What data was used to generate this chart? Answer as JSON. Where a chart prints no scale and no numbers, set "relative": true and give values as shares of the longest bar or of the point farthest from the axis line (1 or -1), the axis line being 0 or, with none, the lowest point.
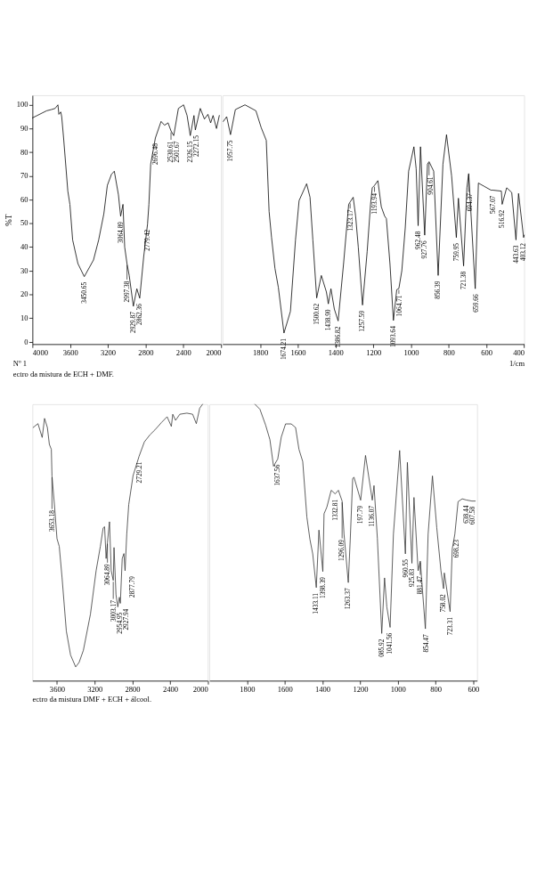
{
  "chart_data": [
    {
      "type": "line",
      "ylabel": "%T",
      "x": [
        4000,
        3950,
        3900,
        3850,
        3800,
        3760,
        3730,
        3720,
        3700,
        3690,
        3670,
        3625,
        3603,
        3574,
        3518,
        3450.65,
        3353,
        3298,
        3243,
        3206,
        3162,
        3132,
        3088,
        3064.89,
        3040,
        3022,
        2997.38,
        2974,
        2929.87,
        2893,
        2862.36,
        2820,
        2779.42,
        2765,
        2746,
        2696.48,
        2636,
        2599,
        2562,
        2530.61,
        2501.67,
        2452,
        2397,
        2360,
        2326.15,
        2287,
        2272.15,
        2220,
        2176,
        2139,
        2110,
        2084,
        2048,
        2018
      ],
      "series": [
        {
          "color": "#000000",
          "values": [
            94.5,
            95.5,
            96.5,
            97.5,
            98,
            98.5,
            100,
            96,
            97,
            95,
            86,
            63.6,
            58,
            43,
            33,
            27.5,
            34.5,
            43,
            54,
            66,
            70.7,
            72,
            62,
            53,
            58,
            40,
            33,
            28,
            15,
            22.4,
            18.4,
            36,
            49.7,
            58,
            75,
            86,
            93,
            91.4,
            92.4,
            89,
            87,
            98.5,
            100,
            95.5,
            87,
            95.5,
            89.4,
            98.5,
            94,
            96,
            92.4,
            95.5,
            90,
            95.5
          ]
        }
      ],
      "xlim": [
        4000,
        2000
      ],
      "xticks": [
        4000,
        3600,
        3200,
        2800,
        2400,
        2000
      ],
      "ylim": [
        -1,
        104
      ],
      "yticks": [
        0,
        10,
        20,
        30,
        40,
        50,
        60,
        70,
        80,
        90,
        100
      ],
      "annotations": [
        {
          "text": "3450.65",
          "x": 3450.65,
          "y": 27.5
        },
        {
          "text": "3064.89",
          "x": 3064.89,
          "y": 53
        },
        {
          "text": "2997.38",
          "x": 2997.38,
          "y": 33
        },
        {
          "text": "2929.87",
          "x": 2929.87,
          "y": 15
        },
        {
          "text": "2862.36",
          "x": 2862.36,
          "y": 18.4
        },
        {
          "text": "2779.42",
          "x": 2779.42,
          "y": 49.7
        },
        {
          "text": "2696.48",
          "x": 2696.48,
          "y": 86
        },
        {
          "text": "2530.61",
          "x": 2530.61,
          "y": 89
        },
        {
          "text": "2501.67",
          "x": 2501.67,
          "y": 87
        },
        {
          "text": "2326.15",
          "x": 2326.15,
          "y": 87
        },
        {
          "text": "2272.15",
          "x": 2272.15,
          "y": 89.4
        },
        "Nº 1",
        "ectro da mistura de ECH + DMF."
      ]
    },
    {
      "type": "line",
      "xlabel": "1/cm",
      "tick_labels": "x",
      "x": [
        1996,
        1978,
        1957.75,
        1932,
        1881,
        1823,
        1795,
        1768,
        1753,
        1740,
        1722,
        1704,
        1674.21,
        1640,
        1613,
        1594,
        1554,
        1536,
        1521,
        1500.62,
        1476,
        1449,
        1438.9,
        1425,
        1407,
        1386.82,
        1358,
        1331,
        1323.17,
        1307,
        1294,
        1280,
        1257.59,
        1233,
        1215,
        1206,
        1193.94,
        1176,
        1158,
        1140,
        1131,
        1112,
        1093.64,
        1076,
        1064.71,
        1049,
        1031,
        1013,
        985,
        973,
        962.48,
        950,
        927.76,
        913,
        904.61,
        880,
        856.39,
        831,
        812,
        785,
        759.95,
        749,
        721.38,
        704,
        694.37,
        659.66,
        643,
        612,
        576,
        567.07,
        521,
        516.92,
        493,
        466,
        443.63,
        430,
        403.12,
        400
      ],
      "series": [
        {
          "color": "#000000",
          "values": [
            93,
            95,
            87.4,
            98,
            100,
            97.5,
            90.4,
            85,
            55,
            44,
            31,
            23,
            3.7,
            12.8,
            43,
            59.6,
            66.7,
            61,
            43,
            18.5,
            28,
            21,
            16,
            22.4,
            13.8,
            8.8,
            33,
            58,
            59,
            61,
            53,
            40,
            15.5,
            38,
            58,
            65,
            66,
            68,
            57,
            53,
            52,
            33,
            9,
            22,
            22.5,
            30,
            48,
            72,
            82.3,
            73,
            49,
            82.3,
            45,
            75,
            76,
            72,
            28,
            75,
            87.4,
            70,
            44,
            60.6,
            32,
            65,
            71,
            22.4,
            67,
            65.6,
            64,
            64,
            63.6,
            58,
            65,
            63,
            43,
            62.6,
            44,
            45
          ]
        }
      ],
      "xlim": [
        2000,
        400
      ],
      "xticks": [
        1800,
        1600,
        1400,
        1200,
        1000,
        800,
        600,
        400
      ],
      "ylim": [
        -1,
        104
      ],
      "annotations": [
        {
          "text": "1957.75",
          "x": 1957.75,
          "y": 87.4
        },
        {
          "text": "1674.21",
          "x": 1674.21,
          "y": 3.7
        },
        {
          "text": "1500.62",
          "x": 1500.62,
          "y": 18.5
        },
        {
          "text": "1438.90",
          "x": 1438.9,
          "y": 16
        },
        {
          "text": "1386.82",
          "x": 1386.82,
          "y": 8.8
        },
        {
          "text": "1323.17",
          "x": 1323.17,
          "y": 59
        },
        {
          "text": "1257.59",
          "x": 1257.59,
          "y": 15.5
        },
        {
          "text": "1193.94",
          "x": 1193.94,
          "y": 66
        },
        {
          "text": "1093.64",
          "x": 1093.64,
          "y": 9
        },
        {
          "text": "1064.71",
          "x": 1064.71,
          "y": 22.5
        },
        {
          "text": "962.48",
          "x": 962.48,
          "y": 49
        },
        {
          "text": "927.76",
          "x": 927.76,
          "y": 45
        },
        {
          "text": "904.61",
          "x": 904.61,
          "y": 76
        },
        {
          "text": "856.39",
          "x": 856.39,
          "y": 28
        },
        {
          "text": "759.95",
          "x": 759.95,
          "y": 44
        },
        {
          "text": "721.38",
          "x": 721.38,
          "y": 32
        },
        {
          "text": "694.37",
          "x": 694.37,
          "y": 71
        },
        {
          "text": "659.66",
          "x": 659.66,
          "y": 22.4
        },
        {
          "text": "567.07",
          "x": 567.07,
          "y": 64
        },
        {
          "text": "516.92",
          "x": 516.92,
          "y": 58
        },
        {
          "text": "443.63",
          "x": 443.63,
          "y": 43
        },
        {
          "text": "403.12",
          "x": 403.12,
          "y": 44
        }
      ]
    },
    {
      "type": "line",
      "relative": true,
      "x": [
        3853,
        3802,
        3757,
        3732,
        3702,
        3681,
        3660,
        3653.18,
        3627,
        3600,
        3576,
        3546,
        3501,
        3456,
        3402,
        3366,
        3320,
        3245,
        3185,
        3140,
        3110,
        3095,
        3079,
        3064.89,
        3043,
        3025,
        3003.17,
        2995,
        2974,
        2954.95,
        2938,
        2927.94,
        2908,
        2890,
        2877.79,
        2860,
        2839,
        2793,
        2729.21,
        2673,
        2613,
        2562,
        2492,
        2432,
        2387,
        2372,
        2342,
        2297,
        2222,
        2161,
        2122,
        2086,
        2056
      ],
      "series": [
        {
          "color": "#333333",
          "values": [
            0.916,
            0.93,
            0.88,
            0.949,
            0.916,
            0.855,
            0.837,
            0.741,
            0.636,
            0.514,
            0.486,
            0.372,
            0.18,
            0.093,
            0.05,
            0.066,
            0.11,
            0.241,
            0.398,
            0.486,
            0.553,
            0.557,
            0.442,
            0.5,
            0.575,
            0.398,
            0.363,
            0.482,
            0.311,
            0.267,
            0.302,
            0.28,
            0.442,
            0.46,
            0.398,
            0.53,
            0.637,
            0.742,
            0.812,
            0.864,
            0.89,
            0.907,
            0.934,
            0.955,
            0.92,
            0.964,
            0.942,
            0.964,
            0.968,
            0.964,
            0.93,
            0.986,
            1.0
          ]
        }
      ],
      "xlim": [
        3860,
        2000
      ],
      "xticks": [
        3600,
        3200,
        2800,
        2400,
        2000
      ],
      "annotations": [
        {
          "text": "3653.18",
          "x": 3653.18,
          "y": 0.741
        },
        {
          "text": "3064.89",
          "x": 3064.89,
          "y": 0.5
        },
        {
          "text": "3003.17",
          "x": 3003.17,
          "y": 0.363
        },
        {
          "text": "2954.95",
          "x": 2954.95,
          "y": 0.267
        },
        {
          "text": "2927.94",
          "x": 2927.94,
          "y": 0.28
        },
        {
          "text": "2877.79",
          "x": 2877.79,
          "y": 0.398
        },
        {
          "text": "2729.21",
          "x": 2729.21,
          "y": 0.812
        },
        "ectro da mistura DMF + ECH + álcool."
      ]
    },
    {
      "type": "line",
      "relative": true,
      "tick_labels": "x",
      "x": [
        1758,
        1732,
        1702,
        1679,
        1660,
        1637.56,
        1619,
        1596,
        1566,
        1543,
        1525,
        1505,
        1483,
        1467,
        1452,
        1433.11,
        1419,
        1398.39,
        1392,
        1377,
        1354,
        1332.81,
        1316,
        1296.09,
        1286,
        1263.37,
        1253,
        1240,
        1233,
        1197.79,
        1172,
        1136.07,
        1127,
        1109,
        1085.92,
        1071,
        1059,
        1041.56,
        1024,
        991,
        960.55,
        950,
        925.83,
        915,
        893,
        881.47,
        854.47,
        840,
        817,
        794,
        772,
        758.02,
        754,
        723.31,
        712,
        698.23,
        681,
        659,
        638.44,
        607.58,
        590
      ],
      "series": [
        {
          "color": "#333333",
          "values": [
            1.0,
            0.982,
            0.925,
            0.872,
            0.776,
            0.802,
            0.881,
            0.929,
            0.929,
            0.916,
            0.837,
            0.793,
            0.592,
            0.512,
            0.459,
            0.337,
            0.545,
            0.395,
            0.604,
            0.628,
            0.689,
            0.676,
            0.689,
            0.65,
            0.53,
            0.355,
            0.51,
            0.732,
            0.736,
            0.653,
            0.815,
            0.653,
            0.706,
            0.514,
            0.171,
            0.372,
            0.267,
            0.193,
            0.53,
            0.833,
            0.459,
            0.79,
            0.425,
            0.663,
            0.398,
            0.433,
            0.188,
            0.53,
            0.741,
            0.553,
            0.398,
            0.333,
            0.39,
            0.25,
            0.477,
            0.53,
            0.648,
            0.658,
            0.654,
            0.65,
            0.65
          ]
        }
      ],
      "xlim": [
        2000,
        580
      ],
      "xticks": [
        1800,
        1600,
        1400,
        1200,
        1000,
        800,
        600
      ],
      "annotations": [
        {
          "text": "1637.56",
          "x": 1637.56,
          "y": 0.802
        },
        {
          "text": "1433.11",
          "x": 1433.11,
          "y": 0.337
        },
        {
          "text": "1398.39",
          "x": 1398.39,
          "y": 0.395
        },
        {
          "text": "1332.81",
          "x": 1332.81,
          "y": 0.676
        },
        {
          "text": "1296.09",
          "x": 1296.09,
          "y": 0.65
        },
        {
          "text": "1263.37",
          "x": 1263.37,
          "y": 0.355
        },
        {
          "text": "197.79",
          "x": 1197.79,
          "y": 0.653
        },
        {
          "text": "1136.07",
          "x": 1136.07,
          "y": 0.653
        },
        {
          "text": "085.92",
          "x": 1085.92,
          "y": 0.171
        },
        {
          "text": "1041.56",
          "x": 1041.56,
          "y": 0.193
        },
        {
          "text": "960.55",
          "x": 960.55,
          "y": 0.459
        },
        {
          "text": "925.83",
          "x": 925.83,
          "y": 0.425
        },
        {
          "text": "881.47",
          "x": 881.47,
          "y": 0.433
        },
        {
          "text": "854.47",
          "x": 854.47,
          "y": 0.188
        },
        {
          "text": "758.02",
          "x": 758.02,
          "y": 0.333
        },
        {
          "text": "723.31",
          "x": 723.31,
          "y": 0.25
        },
        {
          "text": "698.23",
          "x": 698.23,
          "y": 0.53
        },
        {
          "text": "638.44",
          "x": 638.44,
          "y": 0.654
        },
        {
          "text": "607.58",
          "x": 607.58,
          "y": 0.65
        }
      ]
    }
  ]
}
